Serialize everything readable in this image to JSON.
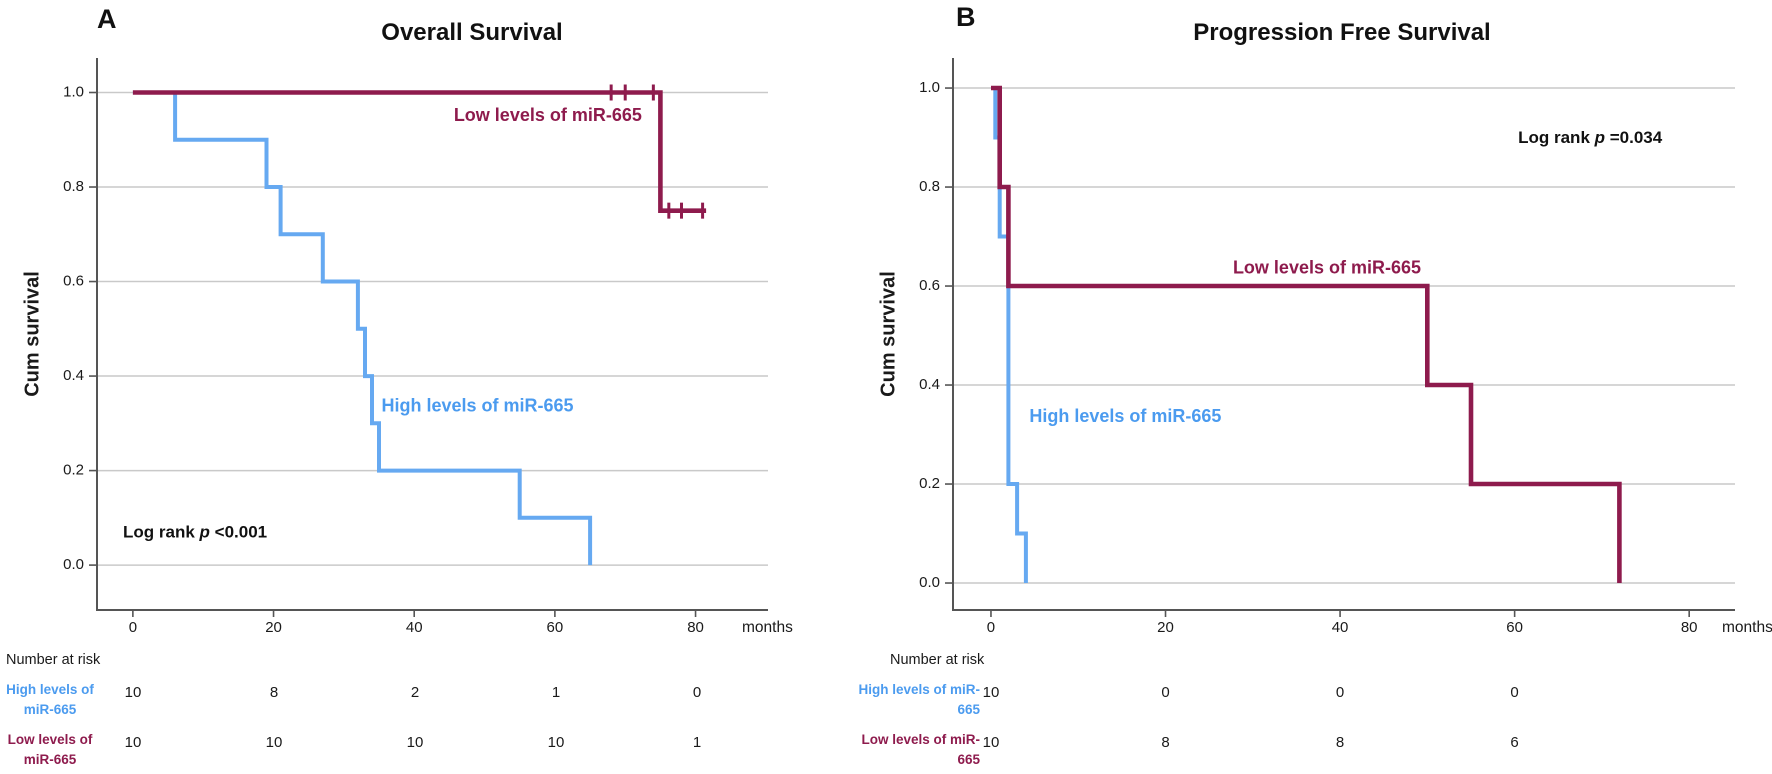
{
  "figure_type": "kaplan-meier-survival-figure",
  "colors": {
    "high_line": "#66A9F1",
    "high_text": "#4B9BEF",
    "low_line": "#8E1B4D",
    "low_text": "#8E1B4D",
    "grid": "#C9C9C9",
    "axis": "#555555",
    "text": "#1A1A1A"
  },
  "chart_data": [
    {
      "type": "line",
      "subtype": "kaplan-meier-step",
      "panel_letter": "A",
      "title": "Overall Survival",
      "xlabel": "months",
      "ylabel": "Cum survival",
      "xticks": [
        0,
        20,
        40,
        60,
        80
      ],
      "yticks": [
        "0.0",
        "0.2",
        "0.4",
        "0.6",
        "0.8",
        "1.0"
      ],
      "xlim": [
        -5.1,
        90.3
      ],
      "ylim": [
        -0.095,
        1.073
      ],
      "grid": "horizontal",
      "annotation": {
        "prefix": "Log rank ",
        "p": "p",
        "suffix": " <0.001",
        "anchor": [
          -1.4,
          0.067
        ]
      },
      "series": [
        {
          "name": "High levels of miR-665",
          "color": "#66A9F1",
          "label_color": "#4B9BEF",
          "label_anchor": [
            49,
            0.335
          ],
          "step_points": [
            [
              0,
              1.0
            ],
            [
              6,
              1.0
            ],
            [
              6,
              0.9
            ],
            [
              19,
              0.9
            ],
            [
              19,
              0.8
            ],
            [
              21,
              0.8
            ],
            [
              21,
              0.7
            ],
            [
              27,
              0.7
            ],
            [
              27,
              0.6
            ],
            [
              32,
              0.6
            ],
            [
              32,
              0.5
            ],
            [
              33,
              0.5
            ],
            [
              33,
              0.4
            ],
            [
              34,
              0.4
            ],
            [
              34,
              0.3
            ],
            [
              35,
              0.3
            ],
            [
              35,
              0.2
            ],
            [
              55,
              0.2
            ],
            [
              55,
              0.1
            ],
            [
              65,
              0.1
            ],
            [
              65,
              0.0
            ]
          ],
          "censor_marks": []
        },
        {
          "name": "Low levels of miR-665",
          "color": "#8E1B4D",
          "label_color": "#8E1B4D",
          "label_anchor": [
            59,
            0.95
          ],
          "step_points": [
            [
              0,
              1.0
            ],
            [
              75,
              1.0
            ],
            [
              75,
              0.75
            ],
            [
              81.5,
              0.75
            ]
          ],
          "censor_marks": [
            [
              68,
              1.0
            ],
            [
              70,
              1.0
            ],
            [
              74,
              1.0
            ],
            [
              76.2,
              0.75
            ],
            [
              78,
              0.75
            ],
            [
              81,
              0.75
            ]
          ]
        }
      ],
      "number_at_risk": {
        "header": "Number at risk",
        "rows": [
          {
            "group": "high",
            "color": "#4B9BEF",
            "label_lines": [
              "High levels of",
              "miR-665"
            ],
            "values": [
              "10",
              "8",
              "2",
              "1",
              "0"
            ]
          },
          {
            "group": "low",
            "color": "#8E1B4D",
            "label_lines": [
              "Low levels of",
              "miR-665"
            ],
            "values": [
              "10",
              "10",
              "10",
              "10",
              "1"
            ]
          }
        ]
      }
    },
    {
      "type": "line",
      "subtype": "kaplan-meier-step",
      "panel_letter": "B",
      "title": "Progression Free Survival",
      "xlabel": "months",
      "ylabel": "Cum survival",
      "xticks": [
        0,
        20,
        40,
        60,
        80
      ],
      "yticks": [
        "0.0",
        "0.2",
        "0.4",
        "0.6",
        "0.8",
        "1.0"
      ],
      "xlim": [
        -4.35,
        85.25
      ],
      "ylim": [
        -0.0545,
        1.0607
      ],
      "grid": "horizontal",
      "annotation": {
        "prefix": "Log rank ",
        "p": "p",
        "suffix": " =0.034",
        "anchor": [
          60.4,
          0.897
        ]
      },
      "series": [
        {
          "name": "High levels of miR-665",
          "color": "#66A9F1",
          "label_color": "#4B9BEF",
          "label_anchor": [
            15.4,
            0.335
          ],
          "step_points": [
            [
              0,
              1.0
            ],
            [
              0.5,
              1.0
            ],
            [
              0.5,
              0.9
            ],
            [
              1,
              0.9
            ],
            [
              1,
              0.7
            ],
            [
              2,
              0.7
            ],
            [
              2,
              0.2
            ],
            [
              3,
              0.2
            ],
            [
              3,
              0.1
            ],
            [
              4,
              0.1
            ],
            [
              4,
              0.0
            ]
          ],
          "censor_marks": []
        },
        {
          "name": "Low levels of miR-665",
          "color": "#8E1B4D",
          "label_color": "#8E1B4D",
          "label_anchor": [
            38.5,
            0.635
          ],
          "step_points": [
            [
              0,
              1.0
            ],
            [
              1,
              1.0
            ],
            [
              1,
              0.8
            ],
            [
              2,
              0.8
            ],
            [
              2,
              0.6
            ],
            [
              50,
              0.6
            ],
            [
              50,
              0.4
            ],
            [
              55,
              0.4
            ],
            [
              55,
              0.2
            ],
            [
              72,
              0.2
            ],
            [
              72,
              0.0
            ]
          ],
          "censor_marks": []
        }
      ],
      "number_at_risk": {
        "header": "Number at risk",
        "rows": [
          {
            "group": "high",
            "color": "#4B9BEF",
            "label_lines": [
              "High levels of miR-",
              "665"
            ],
            "values": [
              "10",
              "0",
              "0",
              "0"
            ]
          },
          {
            "group": "low",
            "color": "#8E1B4D",
            "label_lines": [
              "Low levels of miR-",
              "665"
            ],
            "values": [
              "10",
              "8",
              "8",
              "6"
            ]
          }
        ]
      }
    }
  ]
}
